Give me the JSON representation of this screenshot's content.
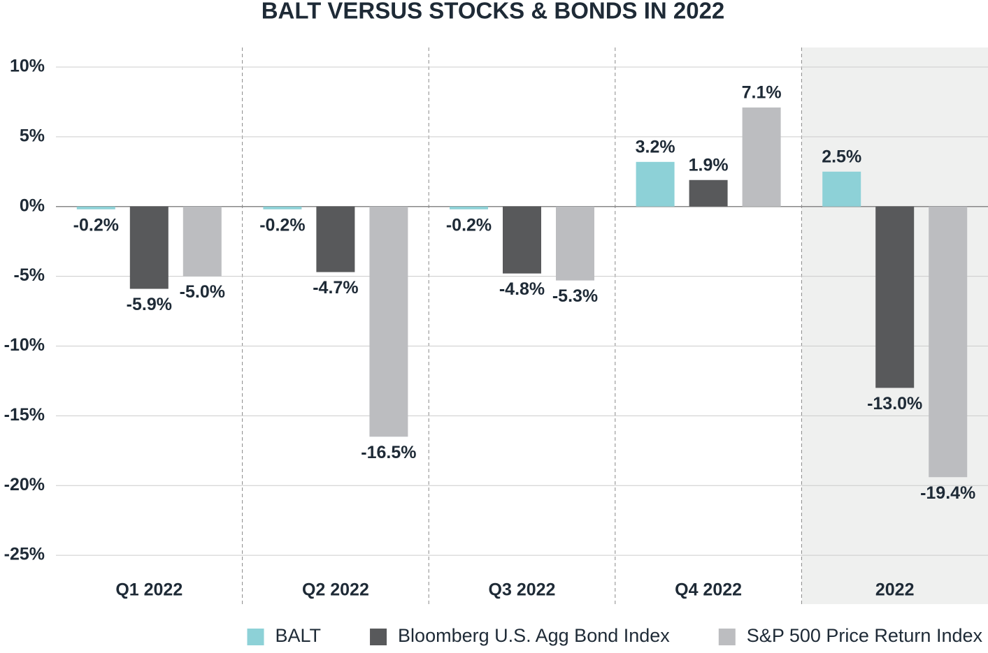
{
  "chart_data": {
    "type": "bar",
    "title": "BALT VERSUS STOCKS & BONDS IN 2022",
    "categories": [
      "Q1 2022",
      "Q2 2022",
      "Q3 2022",
      "Q4 2022",
      "2022"
    ],
    "series": [
      {
        "name": "BALT",
        "color": "#8dd1d7",
        "values": [
          -0.2,
          -0.2,
          -0.2,
          3.2,
          2.5
        ],
        "value_labels": [
          "-0.2%",
          "-0.2%",
          "-0.2%",
          "3.2%",
          "2.5%"
        ]
      },
      {
        "name": "Bloomberg U.S. Agg Bond Index",
        "color": "#58595b",
        "values": [
          -5.9,
          -4.7,
          -4.8,
          1.9,
          -13.0
        ],
        "value_labels": [
          "-5.9%",
          "-4.7%",
          "-4.8%",
          "1.9%",
          "-13.0%"
        ]
      },
      {
        "name": "S&P 500 Price Return Index",
        "color": "#bcbdc0",
        "values": [
          -5.0,
          -16.5,
          -5.3,
          7.1,
          -19.4
        ],
        "value_labels": [
          "-5.0%",
          "-16.5%",
          "-5.3%",
          "7.1%",
          "-19.4%"
        ]
      }
    ],
    "ylim": [
      -28.5,
      11.4
    ],
    "yticks": [
      {
        "value": 10,
        "label": "10%"
      },
      {
        "value": 5,
        "label": "5%"
      },
      {
        "value": 0,
        "label": "0%"
      },
      {
        "value": -5,
        "label": "-5%"
      },
      {
        "value": -10,
        "label": "-10%"
      },
      {
        "value": -15,
        "label": "-15%"
      },
      {
        "value": -20,
        "label": "-20%"
      },
      {
        "value": -25,
        "label": "-25%"
      }
    ],
    "grid": true
  }
}
